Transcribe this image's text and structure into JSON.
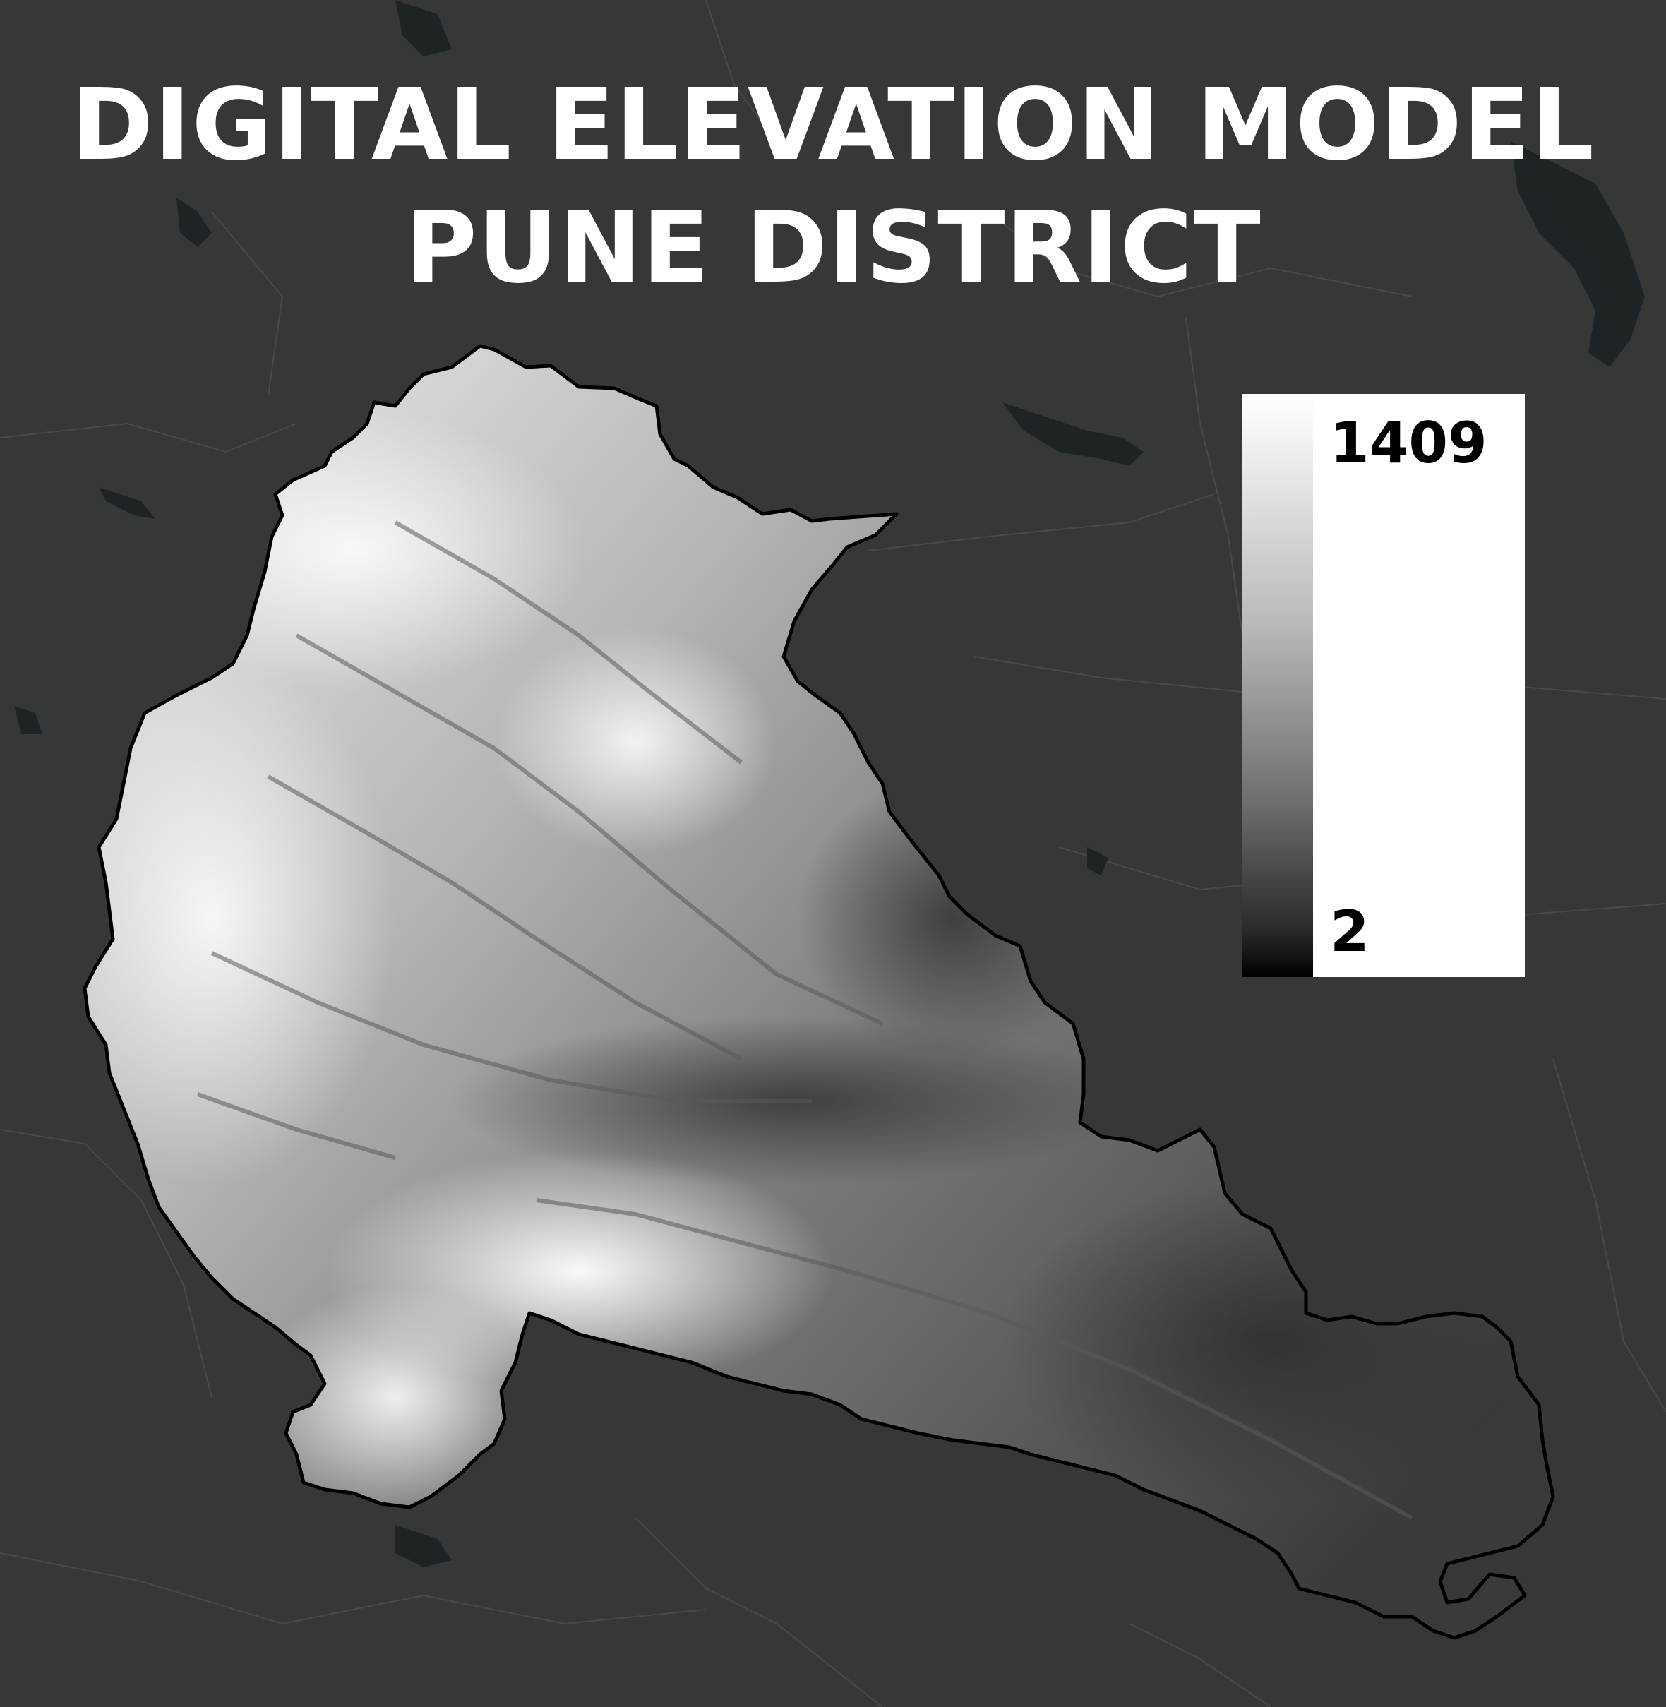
{
  "title": {
    "line1": "DIGITAL ELEVATION MODEL",
    "line2": "PUNE DISTRICT"
  },
  "legend": {
    "max_label": "1409",
    "min_label": "2",
    "ramp_colors": [
      "#ffffff",
      "#000000"
    ]
  },
  "colors": {
    "background": "#363838",
    "water": "#1e2326",
    "roads": "#464a4a",
    "district_outline": "#000000"
  }
}
